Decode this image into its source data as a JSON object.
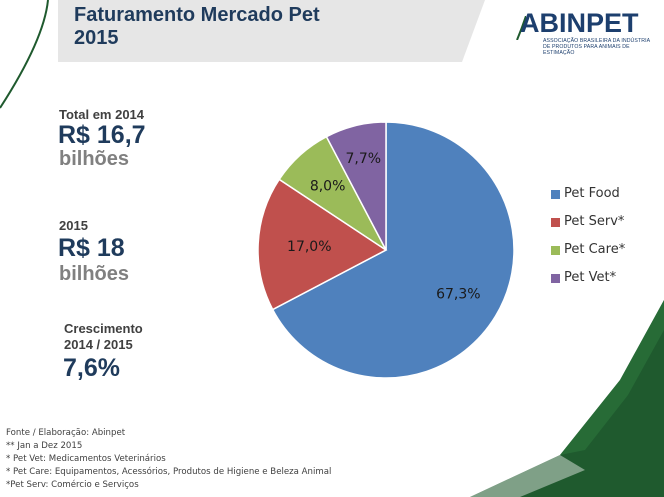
{
  "header": {
    "title": "Faturamento  Mercado Pet\n2015"
  },
  "logo": {
    "wordmark": "ABINPET",
    "tagline": "ASSOCIAÇÃO BRASILEIRA DA INDÚSTRIA\nDE PRODUTOS PARA ANIMAIS DE ESTIMAÇÃO"
  },
  "stats": {
    "total_2014": {
      "label": "Total em 2014",
      "value": "R$ 16,7",
      "unit": "bilhões"
    },
    "total_2015": {
      "label": "2015",
      "value": "R$ 18",
      "unit": "bilhões"
    },
    "growth": {
      "label": "Crescimento\n2014 / 2015",
      "value": "7,6%"
    }
  },
  "footnotes": [
    "Fonte /  Elaboração: Abinpet",
    "** Jan a Dez 2015",
    "* Pet Vet: Medicamentos Veterinários",
    "* Pet Care: Equipamentos, Acessórios, Produtos de Higiene e Beleza Animal",
    "*Pet Serv:  Comércio e Serviços"
  ],
  "colors": {
    "title": "#1f3b5c",
    "accent_green": "#1f5a2e",
    "band_gray": "#e6e6e6"
  },
  "chart_data": {
    "type": "pie",
    "title": "",
    "categories": [
      "Pet Food",
      "Pet Serv*",
      "Pet Care*",
      "Pet Vet*"
    ],
    "values": [
      67.3,
      17.0,
      8.0,
      7.7
    ],
    "data_labels": [
      "67,3%",
      "17,0%",
      "8,0%",
      "7,7%"
    ],
    "colors": [
      "#4f81bd",
      "#c0504d",
      "#9bbb59",
      "#8064a2"
    ],
    "legend_position": "right"
  }
}
